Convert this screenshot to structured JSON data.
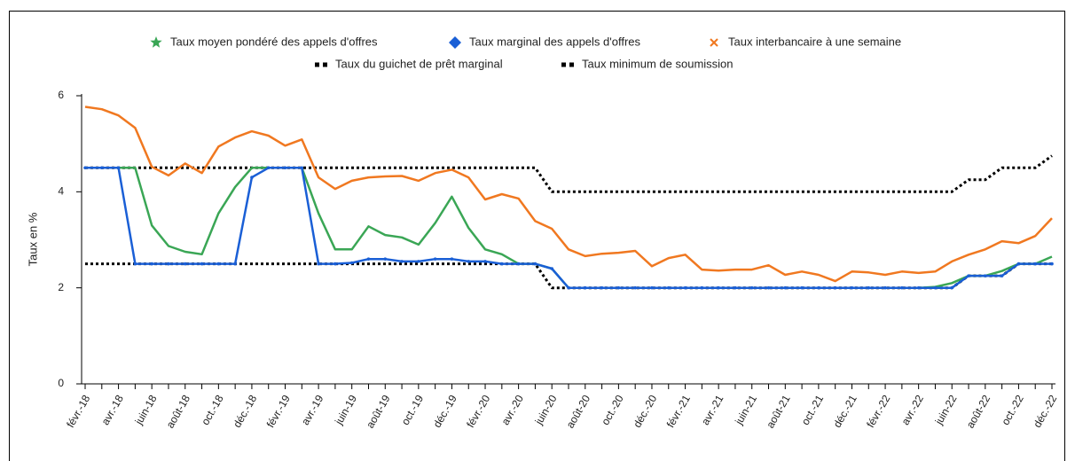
{
  "chart_data": {
    "type": "line",
    "y_label": "Taux en %",
    "categories": [
      "févr.-18",
      null,
      "avr.-18",
      null,
      "juin-18",
      null,
      "août-18",
      null,
      "oct.-18",
      null,
      "déc.-18",
      null,
      "févr.-19",
      null,
      "avr.-19",
      null,
      "juin-19",
      null,
      "août-19",
      null,
      "oct.-19",
      null,
      "déc.-19",
      null,
      "févr.-20",
      null,
      "avr.-20",
      null,
      "juin-20",
      null,
      "août-20",
      null,
      "oct.-20",
      null,
      "déc.-20",
      null,
      "févr.-21",
      null,
      "avr.-21",
      null,
      "juin-21",
      null,
      "août-21",
      null,
      "oct.-21",
      null,
      "déc.-21",
      null,
      "févr.-22",
      null,
      "avr.-22",
      null,
      "juin-22",
      null,
      "août-22",
      null,
      "oct.-22",
      null,
      "déc.-22"
    ],
    "ylim": [
      0,
      6
    ],
    "yticks": [
      0,
      2,
      4,
      6
    ],
    "grid": false,
    "legend": "top",
    "series": [
      {
        "name": "Taux moyen pondéré des appels d'offres",
        "color": "#3aa655",
        "marker": "star",
        "style": "solid",
        "values": [
          4.5,
          4.5,
          4.5,
          4.5,
          3.3,
          2.87,
          2.75,
          2.7,
          3.55,
          4.1,
          4.5,
          4.5,
          4.5,
          4.5,
          3.55,
          2.8,
          2.8,
          3.28,
          3.1,
          3.05,
          2.9,
          3.35,
          3.9,
          3.25,
          2.8,
          2.7,
          2.5,
          2.5,
          2.4,
          2.0,
          2.0,
          2.0,
          2.0,
          2.0,
          2.0,
          2.0,
          2.0,
          2.0,
          2.0,
          2.0,
          2.0,
          2.0,
          2.0,
          2.0,
          2.0,
          2.0,
          2.0,
          2.0,
          2.0,
          2.0,
          2.0,
          2.02,
          2.1,
          2.25,
          2.25,
          2.35,
          2.5,
          2.5,
          2.65
        ]
      },
      {
        "name": "Taux marginal des appels d'offres",
        "color": "#1a5fd6",
        "marker": "diamond",
        "style": "solid",
        "values": [
          4.5,
          4.5,
          4.5,
          2.5,
          2.5,
          2.5,
          2.5,
          2.5,
          2.5,
          2.5,
          4.3,
          4.5,
          4.5,
          4.5,
          2.5,
          2.5,
          2.52,
          2.6,
          2.6,
          2.55,
          2.55,
          2.6,
          2.6,
          2.55,
          2.55,
          2.5,
          2.5,
          2.5,
          2.4,
          2.0,
          2.0,
          2.0,
          2.0,
          2.0,
          2.0,
          2.0,
          2.0,
          2.0,
          2.0,
          2.0,
          2.0,
          2.0,
          2.0,
          2.0,
          2.0,
          2.0,
          2.0,
          2.0,
          2.0,
          2.0,
          2.0,
          2.0,
          2.0,
          2.25,
          2.25,
          2.25,
          2.5,
          2.5,
          2.5
        ]
      },
      {
        "name": "Taux interbancaire à une semaine",
        "color": "#f07820",
        "marker": "x",
        "style": "solid",
        "values": [
          5.77,
          5.72,
          5.59,
          5.33,
          4.52,
          4.34,
          4.59,
          4.39,
          4.94,
          5.13,
          5.26,
          5.17,
          4.96,
          5.09,
          4.3,
          4.06,
          4.23,
          4.3,
          4.32,
          4.33,
          4.23,
          4.39,
          4.46,
          4.3,
          3.84,
          3.95,
          3.86,
          3.39,
          3.23,
          2.8,
          2.66,
          2.71,
          2.73,
          2.77,
          2.45,
          2.62,
          2.69,
          2.38,
          2.36,
          2.38,
          2.38,
          2.47,
          2.27,
          2.34,
          2.27,
          2.14,
          2.34,
          2.32,
          2.27,
          2.34,
          2.31,
          2.34,
          2.55,
          2.69,
          2.8,
          2.97,
          2.93,
          3.08,
          3.45
        ]
      },
      {
        "name": "Taux du guichet de prêt marginal",
        "color": "#000000",
        "marker": "square",
        "style": "dotted",
        "values": [
          4.5,
          4.5,
          4.5,
          4.5,
          4.5,
          4.5,
          4.5,
          4.5,
          4.5,
          4.5,
          4.5,
          4.5,
          4.5,
          4.5,
          4.5,
          4.5,
          4.5,
          4.5,
          4.5,
          4.5,
          4.5,
          4.5,
          4.5,
          4.5,
          4.5,
          4.5,
          4.5,
          4.5,
          4.0,
          4.0,
          4.0,
          4.0,
          4.0,
          4.0,
          4.0,
          4.0,
          4.0,
          4.0,
          4.0,
          4.0,
          4.0,
          4.0,
          4.0,
          4.0,
          4.0,
          4.0,
          4.0,
          4.0,
          4.0,
          4.0,
          4.0,
          4.0,
          4.0,
          4.25,
          4.25,
          4.5,
          4.5,
          4.5,
          4.75
        ]
      },
      {
        "name": "Taux minimum de soumission",
        "color": "#000000",
        "marker": "square",
        "style": "dotted",
        "values": [
          2.5,
          2.5,
          2.5,
          2.5,
          2.5,
          2.5,
          2.5,
          2.5,
          2.5,
          2.5,
          2.5,
          2.5,
          2.5,
          2.5,
          2.5,
          2.5,
          2.5,
          2.5,
          2.5,
          2.5,
          2.5,
          2.5,
          2.5,
          2.5,
          2.5,
          2.5,
          2.5,
          2.5,
          2.0,
          2.0,
          2.0,
          2.0,
          2.0,
          2.0,
          2.0,
          2.0,
          2.0,
          2.0,
          2.0,
          2.0,
          2.0,
          2.0,
          2.0,
          2.0,
          2.0,
          2.0,
          2.0,
          2.0,
          2.0,
          2.0,
          2.0,
          2.0,
          2.0,
          2.25,
          2.25,
          2.25,
          2.5,
          2.5,
          2.5
        ]
      }
    ]
  }
}
